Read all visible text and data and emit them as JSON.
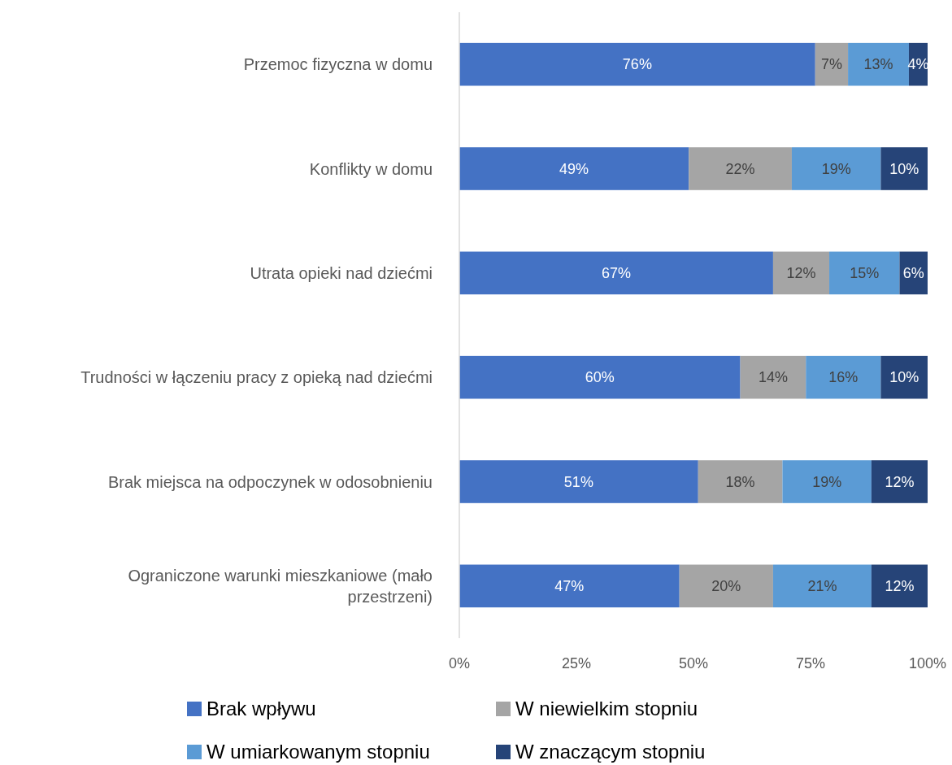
{
  "chart_data": {
    "type": "bar",
    "orientation": "horizontal",
    "stacked": true,
    "categories": [
      "Przemoc fizyczna w domu",
      "Konflikty w domu",
      "Utrata opieki nad dziećmi",
      "Trudności w łączeniu pracy z opieką nad dziećmi",
      "Brak miejsca na odpoczynek w odosobnieniu",
      "Ograniczone warunki mieszkaniowe (mało przestrzeni)"
    ],
    "series": [
      {
        "name": "Brak wpływu",
        "color": "#4472c4",
        "values": [
          76,
          49,
          67,
          60,
          51,
          47
        ],
        "value_labels": [
          "76%",
          "49%",
          "67%",
          "60%",
          "51%",
          "47%"
        ]
      },
      {
        "name": "W niewielkim stopniu",
        "color": "#a5a5a5",
        "values": [
          7,
          22,
          12,
          14,
          18,
          20
        ],
        "value_labels": [
          "7%",
          "22%",
          "12%",
          "14%",
          "18%",
          "20%"
        ]
      },
      {
        "name": "W umiarkowanym stopniu",
        "color": "#5b9bd5",
        "values": [
          13,
          19,
          15,
          16,
          19,
          21
        ],
        "value_labels": [
          "13%",
          "19%",
          "15%",
          "16%",
          "19%",
          "21%"
        ]
      },
      {
        "name": "W znaczącym stopniu",
        "color": "#264478",
        "values": [
          4,
          10,
          6,
          10,
          12,
          12
        ],
        "value_labels": [
          "4%",
          "10%",
          "6%",
          "10%",
          "12%",
          "12%"
        ]
      }
    ],
    "xlim": [
      0,
      100
    ],
    "xticks": [
      {
        "value": 0,
        "label": "0%"
      },
      {
        "value": 25,
        "label": "25%"
      },
      {
        "value": 50,
        "label": "50%"
      },
      {
        "value": 75,
        "label": "75%"
      },
      {
        "value": 100,
        "label": "100%"
      }
    ],
    "grid": false,
    "legend": "bottom"
  }
}
